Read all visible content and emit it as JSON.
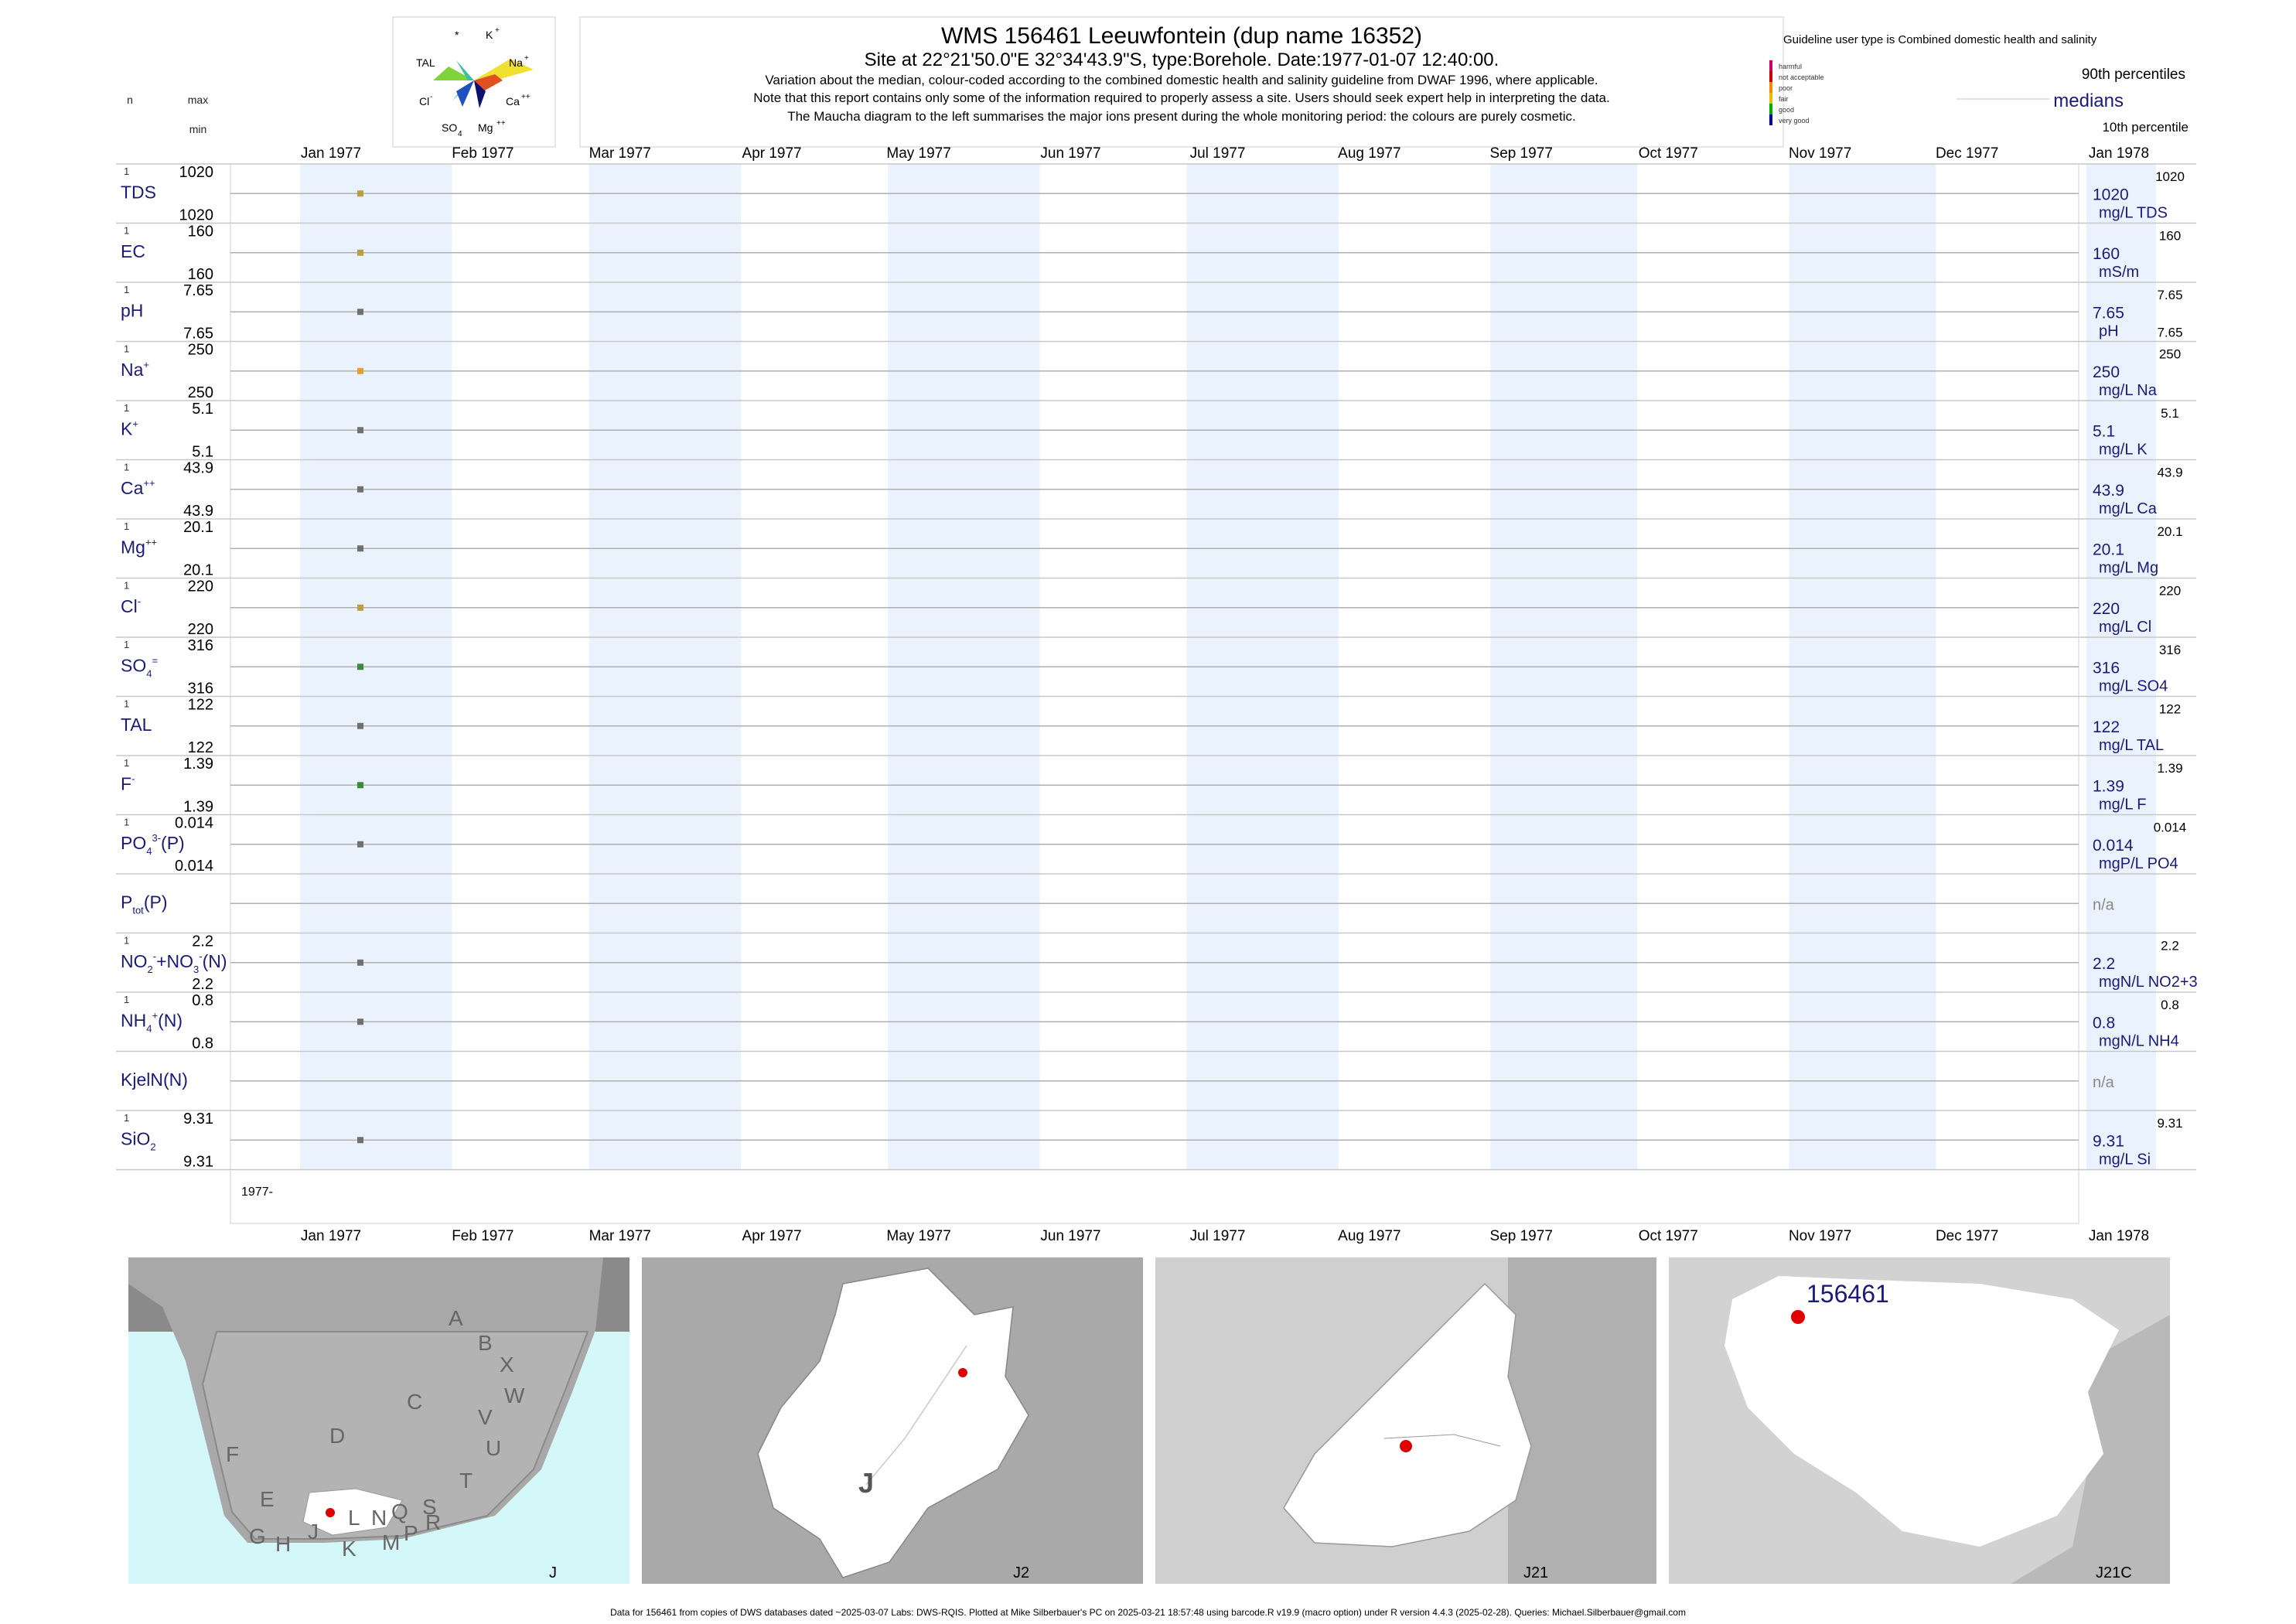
{
  "header": {
    "title": "WMS 156461  Leeuwfontein (dup name 16352)",
    "site_line": "Site at 22°21'50.0\"E 32°34'43.9\"S, type:Borehole. Date:1977-01-07 12:40:00.",
    "notes": [
      "Variation about the median,  colour-coded according to the combined domestic health and salinity guideline from DWAF 1996, where applicable.",
      "Note that this report contains only some of the information required to properly assess a site. Users should seek expert help in interpreting the data.",
      "The Maucha diagram to the left summarises the major ions present during the whole monitoring period: the colours are purely cosmetic."
    ]
  },
  "left_header": {
    "n": "n",
    "max": "max",
    "min": "min"
  },
  "maucha": {
    "labels": {
      "star": "*",
      "k": "K",
      "tal": "TAL",
      "na": "Na",
      "cl": "Cl",
      "ca": "Ca",
      "so4": "SO",
      "mg": "Mg"
    }
  },
  "legend": {
    "guideline_title": "Guideline user type is Combined domestic health and salinity",
    "classes": [
      "harmful",
      "not acceptable",
      "poor",
      "fair",
      "good",
      "very good"
    ],
    "class_colors": [
      "#cc0066",
      "#cc0000",
      "#ff8800",
      "#e6c000",
      "#00aa00",
      "#000099"
    ],
    "p90": "90th percentiles",
    "medians": "medians",
    "p10": "10th percentile"
  },
  "axis": {
    "months_top": [
      "Jan 1977",
      "Feb 1977",
      "Mar 1977",
      "Apr 1977",
      "May 1977",
      "Jun 1977",
      "Jul 1977",
      "Aug 1977",
      "Sep 1977",
      "Oct 1977",
      "Nov 1977",
      "Dec 1977",
      "Jan 1978"
    ],
    "year_label": "1977-"
  },
  "chart_data": {
    "type": "scatter",
    "x_range": [
      "1977-01-01",
      "1978-01-01"
    ],
    "sample_date": "1977-01-07",
    "variables": [
      {
        "label": "TDS",
        "n": "1",
        "max": "1020",
        "min": "1020",
        "median": "1020",
        "unit": "mg/L TDS",
        "p90": "1020",
        "p10": "",
        "value": 1020,
        "color": "#b8a040"
      },
      {
        "label": "EC",
        "n": "1",
        "max": "160",
        "min": "160",
        "median": "160",
        "unit": "mS/m",
        "p90": "160",
        "p10": "",
        "value": 160,
        "color": "#b8a040"
      },
      {
        "label": "pH",
        "n": "1",
        "max": "7.65",
        "min": "7.65",
        "median": "7.65",
        "unit": "pH",
        "p90": "7.65",
        "p10": "7.65",
        "value": 7.65,
        "color": "#707070"
      },
      {
        "label": "Na",
        "n": "1",
        "max": "250",
        "min": "250",
        "median": "250",
        "unit": "mg/L Na",
        "p90": "250",
        "p10": "",
        "value": 250,
        "color": "#e0a030"
      },
      {
        "label": "K",
        "n": "1",
        "max": "5.1",
        "min": "5.1",
        "median": "5.1",
        "unit": "mg/L K",
        "p90": "5.1",
        "p10": "",
        "value": 5.1,
        "color": "#707070"
      },
      {
        "label": "Ca",
        "n": "1",
        "max": "43.9",
        "min": "43.9",
        "median": "43.9",
        "unit": "mg/L Ca",
        "p90": "43.9",
        "p10": "",
        "value": 43.9,
        "color": "#707070"
      },
      {
        "label": "Mg",
        "n": "1",
        "max": "20.1",
        "min": "20.1",
        "median": "20.1",
        "unit": "mg/L Mg",
        "p90": "20.1",
        "p10": "",
        "value": 20.1,
        "color": "#707070"
      },
      {
        "label": "Cl",
        "n": "1",
        "max": "220",
        "min": "220",
        "median": "220",
        "unit": "mg/L Cl",
        "p90": "220",
        "p10": "",
        "value": 220,
        "color": "#b8a040"
      },
      {
        "label": "SO4",
        "n": "1",
        "max": "316",
        "min": "316",
        "median": "316",
        "unit": "mg/L SO4",
        "p90": "316",
        "p10": "",
        "value": 316,
        "color": "#3a8a3a"
      },
      {
        "label": "TAL",
        "n": "1",
        "max": "122",
        "min": "122",
        "median": "122",
        "unit": "mg/L TAL",
        "p90": "122",
        "p10": "",
        "value": 122,
        "color": "#707070"
      },
      {
        "label": "F",
        "n": "1",
        "max": "1.39",
        "min": "1.39",
        "median": "1.39",
        "unit": "mg/L F",
        "p90": "1.39",
        "p10": "",
        "value": 1.39,
        "color": "#3a8a3a"
      },
      {
        "label": "PO4(P)",
        "n": "1",
        "max": "0.014",
        "min": "0.014",
        "median": "0.014",
        "unit": "mgP/L PO4",
        "p90": "0.014",
        "p10": "",
        "value": 0.014,
        "color": "#707070"
      },
      {
        "label": "Ptot(P)",
        "n": "",
        "max": "",
        "min": "",
        "median": "n/a",
        "unit": "",
        "p90": "",
        "p10": "",
        "value": null,
        "color": "#707070"
      },
      {
        "label": "NO2+NO3(N)",
        "n": "1",
        "max": "2.2",
        "min": "2.2",
        "median": "2.2",
        "unit": "mgN/L NO2+3",
        "p90": "2.2",
        "p10": "",
        "value": 2.2,
        "color": "#707070"
      },
      {
        "label": "NH4(N)",
        "n": "1",
        "max": "0.8",
        "min": "0.8",
        "median": "0.8",
        "unit": "mgN/L NH4",
        "p90": "0.8",
        "p10": "",
        "value": 0.8,
        "color": "#707070"
      },
      {
        "label": "KjelN(N)",
        "n": "",
        "max": "",
        "min": "",
        "median": "n/a",
        "unit": "",
        "p90": "",
        "p10": "",
        "value": null,
        "color": "#707070"
      },
      {
        "label": "SiO2",
        "n": "1",
        "max": "9.31",
        "min": "9.31",
        "median": "9.31",
        "unit": "mg/L Si",
        "p90": "9.31",
        "p10": "",
        "value": 9.31,
        "color": "#707070"
      }
    ]
  },
  "maps": {
    "regions": [
      "A",
      "B",
      "X",
      "W",
      "C",
      "V",
      "U",
      "D",
      "T",
      "F",
      "E",
      "G",
      "H",
      "J",
      "K",
      "L",
      "N",
      "Q",
      "M",
      "P",
      "S",
      "R"
    ],
    "main_label": "J",
    "panel_labels": [
      "J",
      "J2",
      "J21",
      "J21C"
    ],
    "site_label": "156461"
  },
  "footer": "Data for 156461 from copies of DWS databases dated ~2025-03-07 Labs: DWS-RQIS. Plotted at Mike Silberbauer's PC on 2025-03-21 18:57:48 using barcode.R v19.9 (macro option) under R version 4.4.3 (2025-02-28). Queries: Michael.Silberbauer@gmail.com"
}
